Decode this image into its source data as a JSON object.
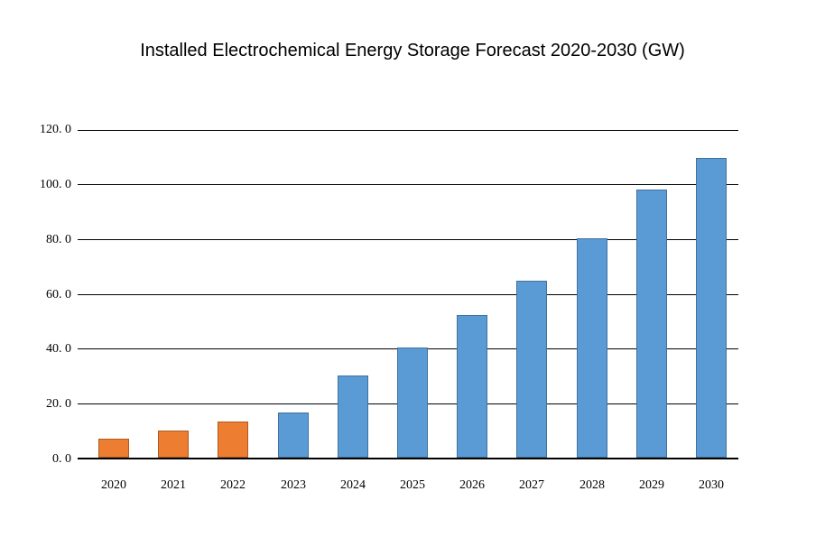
{
  "title": "Installed Electrochemical Energy Storage Forecast 2020-2030 (GW)",
  "chart_data": {
    "type": "bar",
    "title": "Installed Electrochemical Energy Storage Forecast 2020-2030 (GW)",
    "categories": [
      "2020",
      "2021",
      "2022",
      "2023",
      "2024",
      "2025",
      "2026",
      "2027",
      "2028",
      "2029",
      "2030"
    ],
    "values": [
      7,
      10,
      13,
      16.5,
      30,
      40,
      52,
      64.5,
      80,
      97.5,
      109
    ],
    "bar_colors": [
      "#ED7D31",
      "#ED7D31",
      "#ED7D31",
      "#5B9BD5",
      "#5B9BD5",
      "#5B9BD5",
      "#5B9BD5",
      "#5B9BD5",
      "#5B9BD5",
      "#5B9BD5",
      "#5B9BD5"
    ],
    "bar_border_colors": [
      "#AE5A21",
      "#AE5A21",
      "#AE5A21",
      "#41719C",
      "#41719C",
      "#41719C",
      "#41719C",
      "#41719C",
      "#41719C",
      "#41719C",
      "#41719C"
    ],
    "xlabel": "",
    "ylabel": "",
    "ylim": [
      0,
      120
    ],
    "ytick_interval": 20,
    "ytick_labels": [
      "0. 0",
      "20. 0",
      "40. 0",
      "60. 0",
      "80. 0",
      "100. 0",
      "120. 0"
    ],
    "grid": true,
    "legend": "none"
  },
  "colors": {
    "background": "#FFFFFF",
    "gridline": "#000000",
    "axis": "#000000",
    "text": "#000000",
    "bar_actual_fill": "#ED7D31",
    "bar_actual_border": "#AE5A21",
    "bar_forecast_fill": "#5B9BD5",
    "bar_forecast_border": "#41719C"
  }
}
